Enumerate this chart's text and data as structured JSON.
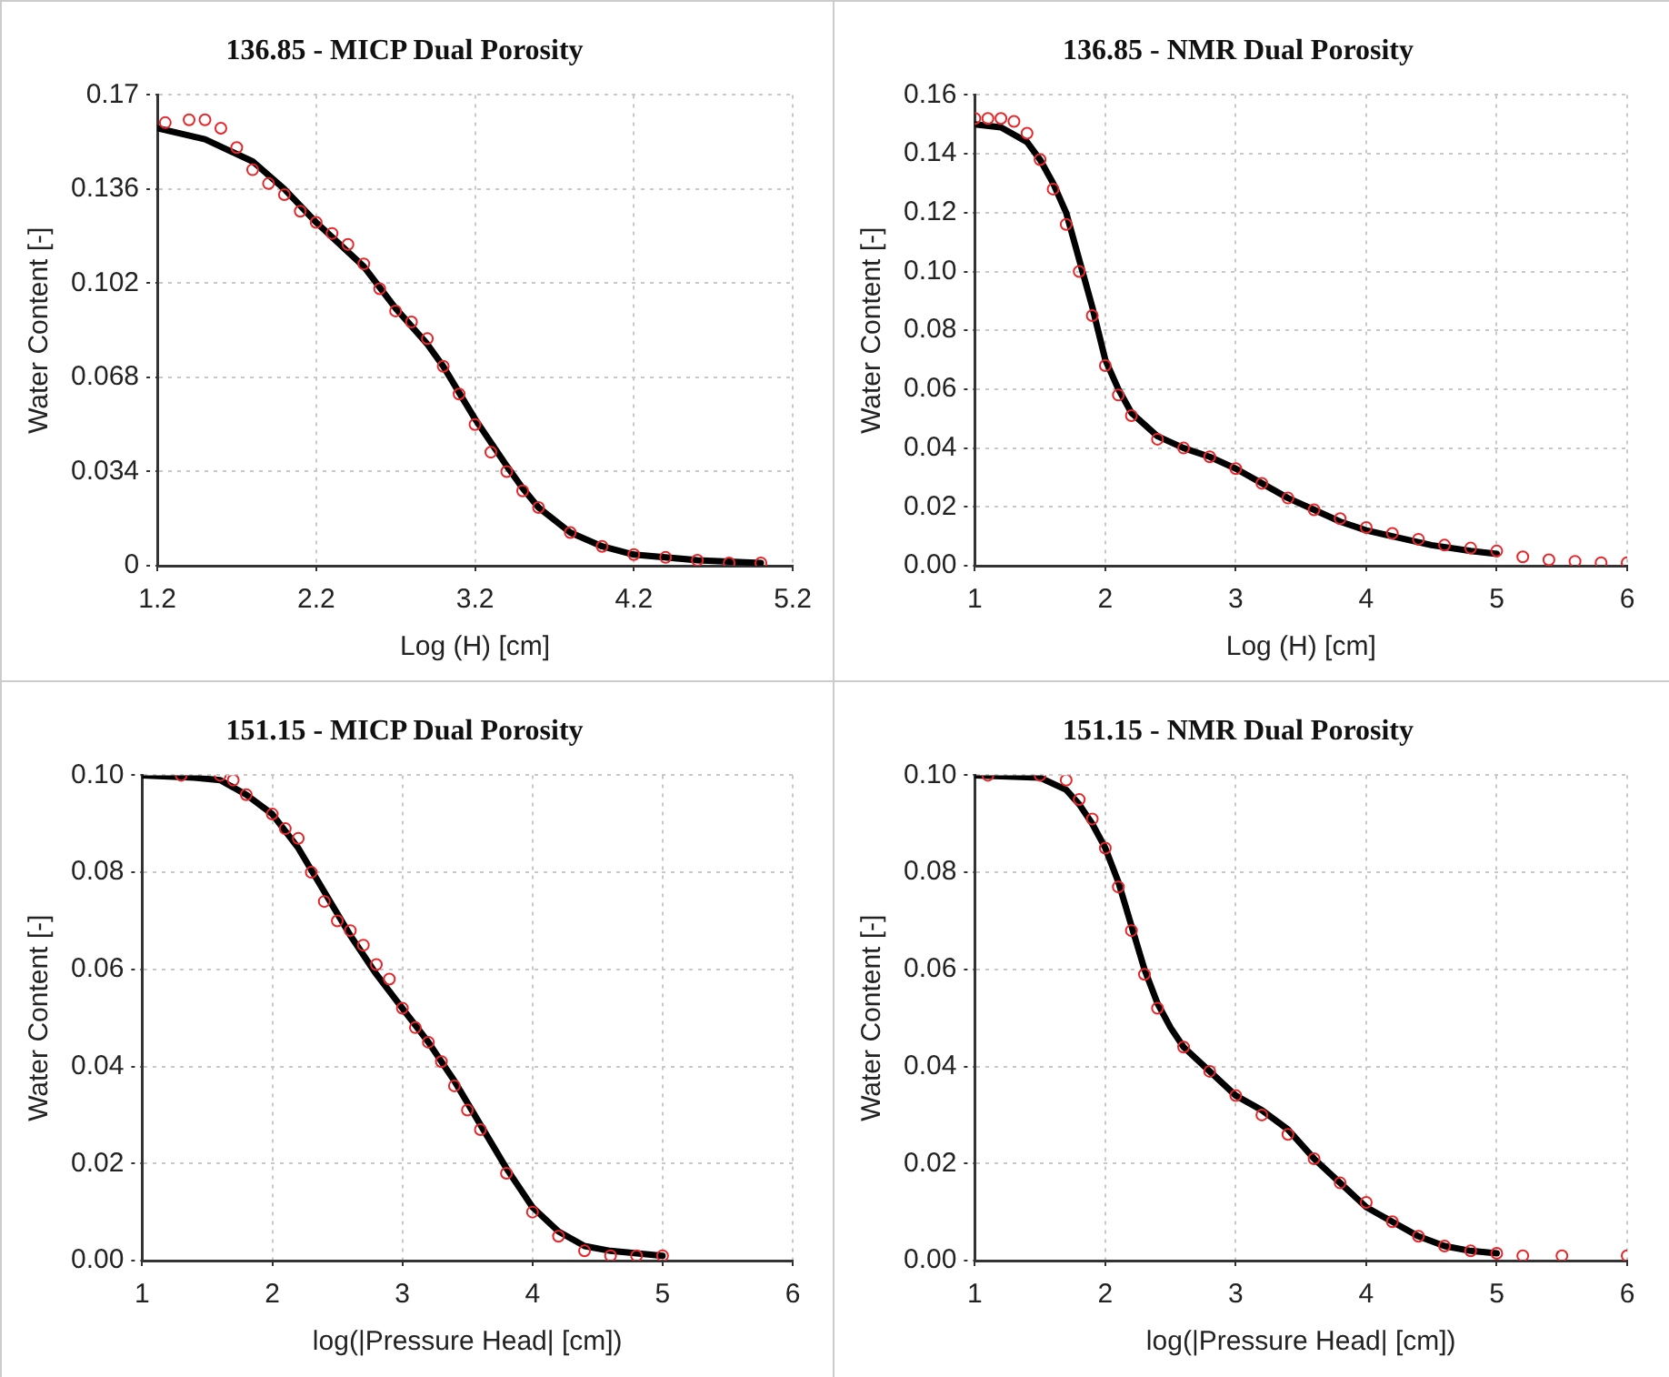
{
  "chart_data": [
    {
      "type": "scatter",
      "title": "136.85 - MICP Dual Porosity",
      "xlabel": "Log (H) [cm]",
      "ylabel": "Water Content [-]",
      "xlim": [
        1.2,
        5.2
      ],
      "xticks": [
        1.2,
        2.2,
        3.2,
        4.2,
        5.2
      ],
      "ylim": [
        0,
        0.17
      ],
      "yticks": [
        0,
        0.034,
        0.068,
        0.102,
        0.136,
        0.17
      ],
      "grid": true,
      "series": [
        {
          "type": "scatter",
          "marker": "circle",
          "color": "#e8262a",
          "x": [
            1.25,
            1.4,
            1.5,
            1.6,
            1.7,
            1.8,
            1.9,
            2.0,
            2.1,
            2.2,
            2.3,
            2.4,
            2.5,
            2.6,
            2.7,
            2.8,
            2.9,
            3.0,
            3.1,
            3.2,
            3.3,
            3.4,
            3.5,
            3.6,
            3.8,
            4.0,
            4.2,
            4.4,
            4.6,
            4.8,
            5.0
          ],
          "values": [
            0.16,
            0.161,
            0.161,
            0.158,
            0.151,
            0.143,
            0.138,
            0.134,
            0.128,
            0.124,
            0.12,
            0.116,
            0.109,
            0.1,
            0.092,
            0.088,
            0.082,
            0.072,
            0.062,
            0.051,
            0.041,
            0.034,
            0.027,
            0.021,
            0.012,
            0.007,
            0.004,
            0.003,
            0.002,
            0.001,
            0.001
          ]
        },
        {
          "type": "line",
          "marker": "none",
          "color": "#000000",
          "x": [
            1.2,
            1.5,
            1.8,
            2.0,
            2.2,
            2.5,
            2.7,
            2.9,
            3.0,
            3.2,
            3.4,
            3.5,
            3.6,
            3.8,
            4.0,
            4.2,
            4.6,
            5.0
          ],
          "values": [
            0.158,
            0.154,
            0.146,
            0.136,
            0.124,
            0.108,
            0.093,
            0.08,
            0.072,
            0.053,
            0.036,
            0.028,
            0.021,
            0.012,
            0.007,
            0.004,
            0.002,
            0.001
          ]
        }
      ]
    },
    {
      "type": "scatter",
      "title": "136.85 - NMR Dual Porosity",
      "xlabel": "Log (H) [cm]",
      "ylabel": "Water Content [-]",
      "xlim": [
        1,
        6
      ],
      "xticks": [
        1,
        2,
        3,
        4,
        5,
        6
      ],
      "ylim": [
        0,
        0.16
      ],
      "yticks": [
        {
          "value": 0,
          "label": "0.00"
        },
        {
          "value": 0.02,
          "label": "0.02"
        },
        {
          "value": 0.04,
          "label": "0.04"
        },
        {
          "value": 0.06,
          "label": "0.06"
        },
        {
          "value": 0.08,
          "label": "0.08"
        },
        {
          "value": 0.1,
          "label": "0.10"
        },
        {
          "value": 0.12,
          "label": "0.12"
        },
        {
          "value": 0.14,
          "label": "0.14"
        },
        {
          "value": 0.16,
          "label": "0.16"
        }
      ],
      "grid": true,
      "series": [
        {
          "type": "scatter",
          "marker": "circle",
          "color": "#e8262a",
          "x": [
            1.0,
            1.1,
            1.2,
            1.3,
            1.4,
            1.5,
            1.6,
            1.7,
            1.8,
            1.9,
            2.0,
            2.1,
            2.2,
            2.4,
            2.6,
            2.8,
            3.0,
            3.2,
            3.4,
            3.6,
            3.8,
            4.0,
            4.2,
            4.4,
            4.6,
            4.8,
            5.0,
            5.2,
            5.4,
            5.6,
            5.8,
            6.0
          ],
          "values": [
            0.152,
            0.152,
            0.152,
            0.151,
            0.147,
            0.138,
            0.128,
            0.116,
            0.1,
            0.085,
            0.068,
            0.058,
            0.051,
            0.043,
            0.04,
            0.037,
            0.033,
            0.028,
            0.023,
            0.019,
            0.016,
            0.013,
            0.011,
            0.009,
            0.007,
            0.006,
            0.005,
            0.003,
            0.002,
            0.0015,
            0.001,
            0.001
          ]
        },
        {
          "type": "line",
          "marker": "none",
          "color": "#000000",
          "x": [
            1.0,
            1.2,
            1.4,
            1.5,
            1.6,
            1.7,
            1.8,
            1.9,
            2.0,
            2.1,
            2.2,
            2.4,
            2.6,
            2.8,
            3.0,
            3.2,
            3.4,
            3.6,
            3.8,
            4.0,
            4.2,
            4.5,
            4.8,
            5.0
          ],
          "values": [
            0.15,
            0.149,
            0.144,
            0.138,
            0.13,
            0.12,
            0.104,
            0.088,
            0.07,
            0.06,
            0.052,
            0.044,
            0.04,
            0.037,
            0.033,
            0.028,
            0.023,
            0.019,
            0.015,
            0.012,
            0.01,
            0.007,
            0.005,
            0.004
          ]
        }
      ]
    },
    {
      "type": "scatter",
      "title": "151.15 - MICP Dual Porosity",
      "xlabel": "log(|Pressure Head| [cm])",
      "ylabel": "Water Content [-]",
      "xlim": [
        1,
        6
      ],
      "xticks": [
        1,
        2,
        3,
        4,
        5,
        6
      ],
      "ylim": [
        0,
        0.1
      ],
      "yticks": [
        {
          "value": 0,
          "label": "0.00"
        },
        {
          "value": 0.02,
          "label": "0.02"
        },
        {
          "value": 0.04,
          "label": "0.04"
        },
        {
          "value": 0.06,
          "label": "0.06"
        },
        {
          "value": 0.08,
          "label": "0.08"
        },
        {
          "value": 0.1,
          "label": "0.10"
        }
      ],
      "grid": true,
      "series": [
        {
          "type": "scatter",
          "marker": "circle",
          "color": "#e8262a",
          "x": [
            1.3,
            1.6,
            1.7,
            1.8,
            2.0,
            2.1,
            2.2,
            2.3,
            2.4,
            2.5,
            2.6,
            2.7,
            2.8,
            2.9,
            3.0,
            3.1,
            3.2,
            3.3,
            3.4,
            3.5,
            3.6,
            3.8,
            4.0,
            4.2,
            4.4,
            4.6,
            4.8,
            5.0
          ],
          "values": [
            0.1,
            0.1,
            0.099,
            0.096,
            0.092,
            0.089,
            0.087,
            0.08,
            0.074,
            0.07,
            0.068,
            0.065,
            0.061,
            0.058,
            0.052,
            0.048,
            0.045,
            0.041,
            0.036,
            0.031,
            0.027,
            0.018,
            0.01,
            0.005,
            0.002,
            0.001,
            0.001,
            0.001
          ]
        },
        {
          "type": "line",
          "marker": "none",
          "color": "#000000",
          "x": [
            1.0,
            1.4,
            1.6,
            1.8,
            2.0,
            2.2,
            2.4,
            2.6,
            2.8,
            3.0,
            3.2,
            3.4,
            3.6,
            3.8,
            4.0,
            4.2,
            4.4,
            4.6,
            4.8,
            5.0
          ],
          "values": [
            0.1,
            0.0995,
            0.099,
            0.096,
            0.092,
            0.085,
            0.076,
            0.067,
            0.059,
            0.052,
            0.045,
            0.037,
            0.028,
            0.019,
            0.011,
            0.006,
            0.003,
            0.002,
            0.0015,
            0.001
          ]
        }
      ]
    },
    {
      "type": "scatter",
      "title": "151.15 - NMR Dual Porosity",
      "xlabel": "log(|Pressure Head| [cm])",
      "ylabel": "Water Content [-]",
      "xlim": [
        1,
        6
      ],
      "xticks": [
        1,
        2,
        3,
        4,
        5,
        6
      ],
      "ylim": [
        0,
        0.1
      ],
      "yticks": [
        {
          "value": 0,
          "label": "0.00"
        },
        {
          "value": 0.02,
          "label": "0.02"
        },
        {
          "value": 0.04,
          "label": "0.04"
        },
        {
          "value": 0.06,
          "label": "0.06"
        },
        {
          "value": 0.08,
          "label": "0.08"
        },
        {
          "value": 0.1,
          "label": "0.10"
        }
      ],
      "grid": true,
      "series": [
        {
          "type": "scatter",
          "marker": "circle",
          "color": "#e8262a",
          "x": [
            1.1,
            1.5,
            1.7,
            1.8,
            1.9,
            2.0,
            2.1,
            2.2,
            2.3,
            2.4,
            2.6,
            2.8,
            3.0,
            3.2,
            3.4,
            3.6,
            3.8,
            4.0,
            4.2,
            4.4,
            4.6,
            4.8,
            5.0,
            5.2,
            5.5,
            6.0
          ],
          "values": [
            0.1,
            0.1,
            0.099,
            0.095,
            0.091,
            0.085,
            0.077,
            0.068,
            0.059,
            0.052,
            0.044,
            0.039,
            0.034,
            0.03,
            0.026,
            0.021,
            0.016,
            0.012,
            0.008,
            0.005,
            0.003,
            0.002,
            0.0015,
            0.001,
            0.001,
            0.001
          ]
        },
        {
          "type": "line",
          "marker": "none",
          "color": "#000000",
          "x": [
            1.0,
            1.5,
            1.7,
            1.8,
            1.9,
            2.0,
            2.1,
            2.2,
            2.3,
            2.4,
            2.5,
            2.6,
            2.8,
            3.0,
            3.2,
            3.4,
            3.6,
            3.8,
            4.0,
            4.2,
            4.4,
            4.6,
            4.8,
            5.0
          ],
          "values": [
            0.1,
            0.0995,
            0.097,
            0.094,
            0.09,
            0.085,
            0.078,
            0.069,
            0.06,
            0.053,
            0.048,
            0.044,
            0.039,
            0.034,
            0.031,
            0.027,
            0.021,
            0.016,
            0.011,
            0.008,
            0.005,
            0.003,
            0.002,
            0.0015
          ]
        }
      ]
    }
  ]
}
